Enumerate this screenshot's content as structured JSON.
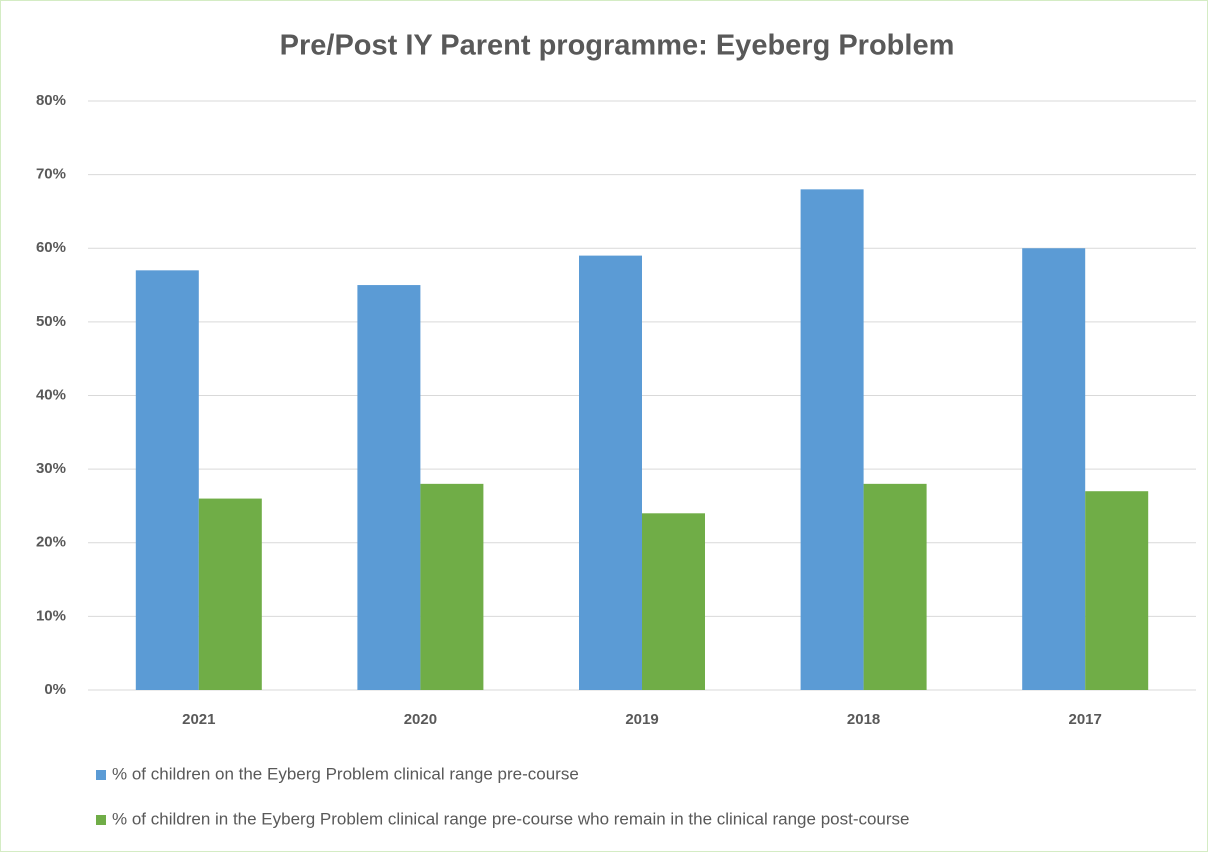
{
  "chart_data": {
    "type": "bar",
    "title": "Pre/Post IY Parent programme: Eyeberg Problem",
    "categories": [
      "2021",
      "2020",
      "2019",
      "2018",
      "2017"
    ],
    "series": [
      {
        "name": "% of children on the Eyberg Problem clinical range pre-course",
        "color": "#5b9bd5",
        "values": [
          57,
          55,
          59,
          68,
          60
        ]
      },
      {
        "name": "% of children in the Eyberg Problem clinical range pre-course who remain in the clinical range post-course",
        "color": "#70ad47",
        "values": [
          26,
          28,
          24,
          28,
          27
        ]
      }
    ],
    "ylim": [
      0,
      80
    ],
    "yticks": [
      {
        "value": 0,
        "label": "0%"
      },
      {
        "value": 10,
        "label": "10%"
      },
      {
        "value": 20,
        "label": "20%"
      },
      {
        "value": 30,
        "label": "30%"
      },
      {
        "value": 40,
        "label": "40%"
      },
      {
        "value": 50,
        "label": "50%"
      },
      {
        "value": 60,
        "label": "60%"
      },
      {
        "value": 70,
        "label": "70%"
      },
      {
        "value": 80,
        "label": "80%"
      }
    ],
    "grid": true,
    "legend": "bottom"
  }
}
